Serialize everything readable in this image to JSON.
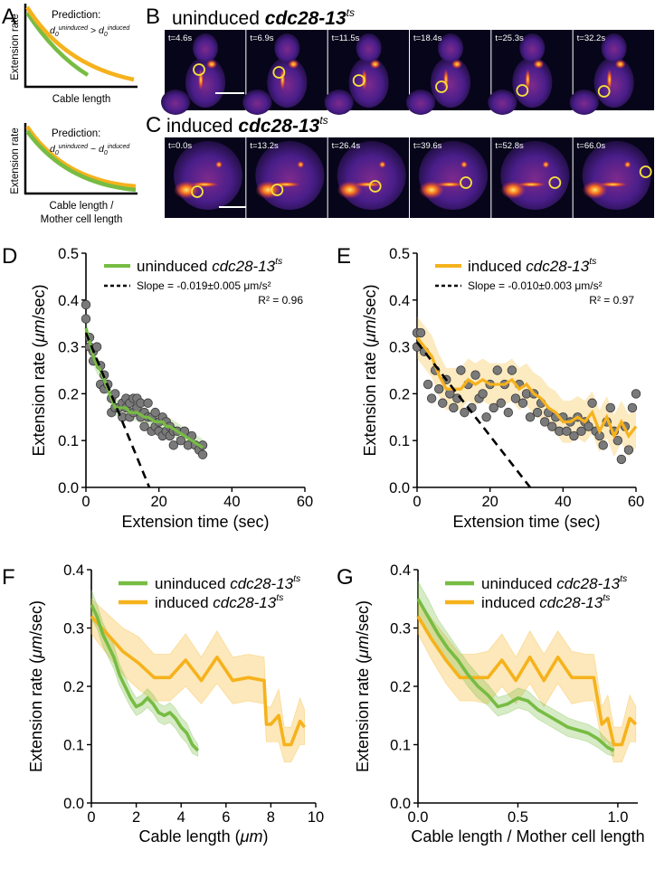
{
  "colors": {
    "green": "#77bc43",
    "orange": "#f6b21c",
    "gray": "#777777"
  },
  "panel_letters": [
    "A",
    "B",
    "C",
    "D",
    "E",
    "F",
    "G"
  ],
  "panelA": {
    "top": {
      "title": "Prediction:",
      "equation": "d0uninduced > d0induced",
      "xlabel": "Cable length",
      "ylabel": "Extension rate"
    },
    "bottom": {
      "title": "Prediction:",
      "equation": "d0uninduced ~ d0induced",
      "xlabel1": "Cable length /",
      "xlabel2": "Mother cell length",
      "ylabel": "Extension rate"
    }
  },
  "panelB": {
    "title_plain": "uninduced",
    "title_italic": "cdc28-13",
    "title_sup": "ts",
    "frames": [
      "t=4.6s",
      "t=6.9s",
      "t=11.5s",
      "t=18.4s",
      "t=25.3s",
      "t=32.2s"
    ]
  },
  "panelC": {
    "title_plain": "induced",
    "title_italic": "cdc28-13",
    "title_sup": "ts",
    "frames": [
      "t=0.0s",
      "t=13.2s",
      "t=26.4s",
      "t=39.6s",
      "t=52.8s",
      "t=66.0s"
    ]
  },
  "chart_data": [
    {
      "id": "D",
      "type": "scatter",
      "xlabel": "Extension time (sec)",
      "ylabel": "Extension rate (μm/sec)",
      "xlim": [
        0,
        60
      ],
      "ylim": [
        0,
        0.5
      ],
      "xticks": [
        0,
        20,
        40,
        60
      ],
      "yticks": [
        0.0,
        0.1,
        0.2,
        0.3,
        0.4,
        0.5
      ],
      "legend": {
        "series_plain": "uninduced",
        "series_italic": "cdc28-13",
        "series_sup": "ts",
        "fit_label": "Slope = -0.019±0.005 μm/s²",
        "r2": "R² = 0.96"
      },
      "fit": {
        "slope": -0.019,
        "intercept": 0.33
      },
      "mean": {
        "x": [
          0,
          1,
          2,
          3,
          4,
          5,
          6,
          7,
          8,
          9,
          10,
          11,
          12,
          13,
          14,
          15,
          16,
          17,
          18,
          19,
          20,
          21,
          22,
          23,
          24,
          25,
          26,
          27,
          28,
          29,
          30,
          31,
          32
        ],
        "y": [
          0.34,
          0.31,
          0.28,
          0.26,
          0.25,
          0.23,
          0.21,
          0.19,
          0.17,
          0.17,
          0.17,
          0.17,
          0.16,
          0.16,
          0.16,
          0.155,
          0.15,
          0.15,
          0.145,
          0.14,
          0.14,
          0.14,
          0.13,
          0.13,
          0.125,
          0.12,
          0.115,
          0.11,
          0.105,
          0.1,
          0.095,
          0.09,
          0.085
        ],
        "err": 0.018
      },
      "points": {
        "x": [
          0,
          0,
          1,
          1,
          2,
          2,
          3,
          4,
          4,
          5,
          5,
          6,
          7,
          7,
          8,
          8,
          9,
          10,
          10,
          11,
          11,
          12,
          12,
          13,
          13,
          14,
          14,
          15,
          15,
          16,
          16,
          17,
          17,
          18,
          18,
          19,
          19,
          20,
          20,
          21,
          21,
          22,
          22,
          23,
          23,
          24,
          24,
          25,
          26,
          27,
          28,
          29,
          30,
          31,
          32,
          32
        ],
        "y": [
          0.39,
          0.36,
          0.32,
          0.3,
          0.29,
          0.27,
          0.3,
          0.26,
          0.22,
          0.24,
          0.21,
          0.22,
          0.19,
          0.16,
          0.2,
          0.17,
          0.17,
          0.15,
          0.18,
          0.19,
          0.17,
          0.15,
          0.18,
          0.19,
          0.16,
          0.19,
          0.17,
          0.18,
          0.15,
          0.16,
          0.13,
          0.18,
          0.15,
          0.15,
          0.12,
          0.16,
          0.13,
          0.14,
          0.12,
          0.15,
          0.11,
          0.14,
          0.12,
          0.13,
          0.11,
          0.12,
          0.09,
          0.12,
          0.1,
          0.12,
          0.09,
          0.11,
          0.09,
          0.08,
          0.09,
          0.07
        ]
      }
    },
    {
      "id": "E",
      "type": "scatter",
      "xlabel": "Extension time (sec)",
      "ylabel": "Extension rate (μm/sec)",
      "xlim": [
        0,
        60
      ],
      "ylim": [
        0,
        0.5
      ],
      "xticks": [
        0,
        20,
        40,
        60
      ],
      "yticks": [
        0.0,
        0.1,
        0.2,
        0.3,
        0.4,
        0.5
      ],
      "legend": {
        "series_plain": "induced",
        "series_italic": "cdc28-13",
        "series_sup": "ts",
        "fit_label": "Slope = -0.010±0.003 μm/s²",
        "r2": "R² = 0.97"
      },
      "fit": {
        "slope": -0.01,
        "intercept": 0.31
      },
      "mean": {
        "x": [
          0,
          2,
          4,
          6,
          8,
          10,
          12,
          14,
          16,
          18,
          20,
          22,
          24,
          26,
          28,
          30,
          32,
          34,
          36,
          38,
          40,
          42,
          44,
          46,
          48,
          50,
          52,
          54,
          56,
          58,
          60
        ],
        "y": [
          0.32,
          0.3,
          0.28,
          0.24,
          0.21,
          0.21,
          0.21,
          0.23,
          0.22,
          0.23,
          0.22,
          0.22,
          0.22,
          0.23,
          0.21,
          0.22,
          0.2,
          0.19,
          0.17,
          0.16,
          0.14,
          0.14,
          0.15,
          0.14,
          0.16,
          0.12,
          0.15,
          0.11,
          0.14,
          0.11,
          0.13
        ],
        "err": 0.045
      },
      "points": {
        "x": [
          0,
          0,
          1,
          2,
          3,
          4,
          5,
          6,
          7,
          8,
          9,
          10,
          11,
          12,
          13,
          14,
          15,
          16,
          17,
          18,
          19,
          20,
          21,
          22,
          23,
          24,
          25,
          26,
          27,
          28,
          29,
          30,
          31,
          32,
          33,
          34,
          35,
          36,
          37,
          38,
          39,
          40,
          41,
          42,
          43,
          44,
          45,
          46,
          47,
          48,
          49,
          50,
          51,
          52,
          53,
          54,
          55,
          56,
          57,
          58,
          59,
          60
        ],
        "y": [
          0.33,
          0.3,
          0.33,
          0.29,
          0.22,
          0.19,
          0.25,
          0.21,
          0.18,
          0.23,
          0.2,
          0.17,
          0.19,
          0.25,
          0.16,
          0.22,
          0.17,
          0.24,
          0.19,
          0.2,
          0.15,
          0.22,
          0.17,
          0.25,
          0.18,
          0.22,
          0.16,
          0.25,
          0.19,
          0.22,
          0.18,
          0.2,
          0.15,
          0.2,
          0.16,
          0.18,
          0.14,
          0.16,
          0.13,
          0.15,
          0.12,
          0.15,
          0.12,
          0.14,
          0.11,
          0.15,
          0.12,
          0.14,
          0.13,
          0.18,
          0.12,
          0.11,
          0.09,
          0.14,
          0.17,
          0.12,
          0.1,
          0.06,
          0.13,
          0.08,
          0.17,
          0.2
        ]
      }
    },
    {
      "id": "F",
      "type": "line",
      "xlabel": "Cable length (μm)",
      "ylabel": "Extension rate (μm/sec)",
      "xlim": [
        0,
        10
      ],
      "ylim": [
        0,
        0.4
      ],
      "xticks": [
        0,
        2,
        4,
        6,
        8,
        10
      ],
      "yticks": [
        0.0,
        0.1,
        0.2,
        0.3,
        0.4
      ],
      "series": [
        {
          "name_plain": "uninduced",
          "name_italic": "cdc28-13",
          "name_sup": "ts",
          "color": "green",
          "x": [
            0,
            0.25,
            0.5,
            0.75,
            1,
            1.25,
            1.5,
            1.75,
            2,
            2.25,
            2.5,
            2.75,
            3,
            3.25,
            3.5,
            3.75,
            4,
            4.25,
            4.5,
            4.75
          ],
          "y": [
            0.34,
            0.32,
            0.29,
            0.27,
            0.25,
            0.22,
            0.2,
            0.18,
            0.165,
            0.17,
            0.18,
            0.17,
            0.155,
            0.15,
            0.155,
            0.145,
            0.13,
            0.12,
            0.1,
            0.09
          ],
          "err": [
            0.025,
            0.02,
            0.02,
            0.02,
            0.02,
            0.018,
            0.017,
            0.016,
            0.015,
            0.015,
            0.016,
            0.016,
            0.016,
            0.016,
            0.017,
            0.017,
            0.017,
            0.017,
            0.015,
            0.01
          ]
        },
        {
          "name_plain": "induced",
          "name_italic": "cdc28-13",
          "name_sup": "ts",
          "color": "orange",
          "x": [
            0,
            0.7,
            1.4,
            2.1,
            2.8,
            3.5,
            4.2,
            4.9,
            5.6,
            6.3,
            7.0,
            7.7,
            7.8,
            8.0,
            8.35,
            8.6,
            8.9,
            9.3,
            9.5
          ],
          "y": [
            0.32,
            0.29,
            0.26,
            0.24,
            0.215,
            0.215,
            0.245,
            0.21,
            0.25,
            0.21,
            0.215,
            0.21,
            0.135,
            0.135,
            0.15,
            0.1,
            0.1,
            0.14,
            0.13
          ],
          "err": [
            0.03,
            0.035,
            0.04,
            0.045,
            0.04,
            0.04,
            0.045,
            0.04,
            0.045,
            0.04,
            0.04,
            0.04,
            0.03,
            0.03,
            0.045,
            0.03,
            0.03,
            0.04,
            0.03
          ]
        }
      ]
    },
    {
      "id": "G",
      "type": "line",
      "xlabel": "Cable length / Mother cell length",
      "ylabel": "Extension rate (μm/sec)",
      "xlim": [
        0,
        1.1
      ],
      "ylim": [
        0,
        0.4
      ],
      "xticks": [
        0.0,
        0.5,
        1.0
      ],
      "yticks": [
        0.0,
        0.1,
        0.2,
        0.3,
        0.4
      ],
      "series": [
        {
          "name_plain": "uninduced",
          "name_italic": "cdc28-13",
          "name_sup": "ts",
          "color": "green",
          "x": [
            0,
            0.05,
            0.1,
            0.15,
            0.2,
            0.25,
            0.3,
            0.35,
            0.4,
            0.45,
            0.5,
            0.55,
            0.6,
            0.65,
            0.7,
            0.75,
            0.8,
            0.85,
            0.9,
            0.95,
            0.98
          ],
          "y": [
            0.35,
            0.32,
            0.29,
            0.265,
            0.245,
            0.22,
            0.2,
            0.185,
            0.165,
            0.17,
            0.18,
            0.175,
            0.16,
            0.15,
            0.14,
            0.13,
            0.125,
            0.12,
            0.11,
            0.095,
            0.09
          ],
          "err": [
            0.03,
            0.03,
            0.025,
            0.025,
            0.02,
            0.02,
            0.02,
            0.018,
            0.016,
            0.016,
            0.017,
            0.017,
            0.016,
            0.016,
            0.016,
            0.016,
            0.015,
            0.015,
            0.015,
            0.012,
            0.01
          ]
        },
        {
          "name_plain": "induced",
          "name_italic": "cdc28-13",
          "name_sup": "ts",
          "color": "orange",
          "x": [
            0,
            0.07,
            0.14,
            0.21,
            0.28,
            0.35,
            0.42,
            0.49,
            0.56,
            0.63,
            0.7,
            0.77,
            0.84,
            0.88,
            0.92,
            0.95,
            0.98,
            1.02,
            1.06,
            1.09
          ],
          "y": [
            0.32,
            0.28,
            0.245,
            0.215,
            0.215,
            0.215,
            0.245,
            0.21,
            0.25,
            0.21,
            0.25,
            0.215,
            0.215,
            0.215,
            0.135,
            0.145,
            0.1,
            0.1,
            0.145,
            0.135
          ],
          "err": [
            0.03,
            0.035,
            0.04,
            0.04,
            0.04,
            0.045,
            0.045,
            0.04,
            0.045,
            0.045,
            0.045,
            0.045,
            0.04,
            0.04,
            0.03,
            0.04,
            0.03,
            0.03,
            0.04,
            0.03
          ]
        }
      ]
    }
  ]
}
